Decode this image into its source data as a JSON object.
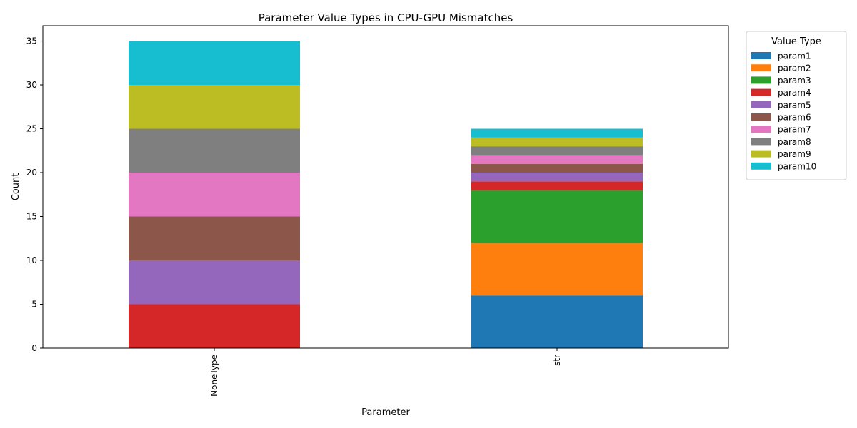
{
  "chart_data": {
    "type": "bar",
    "stacked": true,
    "title": "Parameter Value Types in CPU-GPU Mismatches",
    "xlabel": "Parameter",
    "ylabel": "Count",
    "ylim": [
      0,
      36.75
    ],
    "yticks": [
      0,
      5,
      10,
      15,
      20,
      25,
      30,
      35
    ],
    "categories": [
      "NoneType",
      "str"
    ],
    "legend_title": "Value Type",
    "legend_position": "outside-top-right",
    "grid": false,
    "series": [
      {
        "name": "param1",
        "color": "#1f77b4",
        "values": [
          0,
          6
        ]
      },
      {
        "name": "param2",
        "color": "#ff7f0e",
        "values": [
          0,
          6
        ]
      },
      {
        "name": "param3",
        "color": "#2ca02c",
        "values": [
          0,
          6
        ]
      },
      {
        "name": "param4",
        "color": "#d62728",
        "values": [
          5,
          1
        ]
      },
      {
        "name": "param5",
        "color": "#9467bd",
        "values": [
          5,
          1
        ]
      },
      {
        "name": "param6",
        "color": "#8c564b",
        "values": [
          5,
          1
        ]
      },
      {
        "name": "param7",
        "color": "#e377c2",
        "values": [
          5,
          1
        ]
      },
      {
        "name": "param8",
        "color": "#7f7f7f",
        "values": [
          5,
          1
        ]
      },
      {
        "name": "param9",
        "color": "#bcbd22",
        "values": [
          5,
          1
        ]
      },
      {
        "name": "param10",
        "color": "#17becf",
        "values": [
          5,
          1
        ]
      }
    ]
  }
}
